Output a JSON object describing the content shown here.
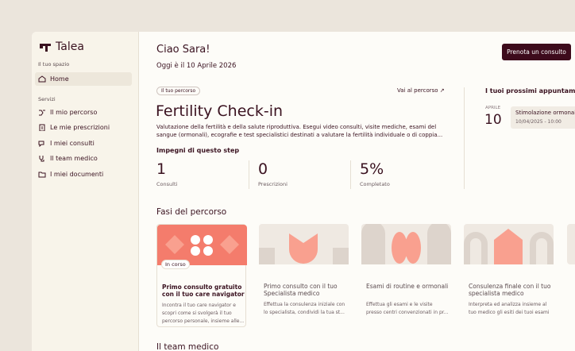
{
  "sidebar": {
    "brand": "Talea",
    "section_space": "Il tuo spazio",
    "home": "Home",
    "section_services": "Servizi",
    "items": [
      "Il mio percorso",
      "Le mie prescrizioni",
      "I miei consulti",
      "Il team medico",
      "I miei documenti"
    ]
  },
  "header": {
    "greeting": "Ciao Sara!",
    "date": "Oggi è il 10 Aprile 2026",
    "button": "Prenota un consulto"
  },
  "journey": {
    "badge": "Il tuo percorso",
    "link": "Vai al percorso",
    "title": "Fertility Check-in",
    "description": "Valutazione della fertilità e della salute riproduttiva. Esegui video consulti, visite mediche, esami del sangue (ormonali), ecografie e test specialistici destinati a valutare la fertilità individuale o di coppia...",
    "commitments_title": "Impegni di questo step",
    "stats": [
      {
        "value": "1",
        "label": "Consulti"
      },
      {
        "value": "0",
        "label": "Prescrizioni"
      },
      {
        "value": "5%",
        "label": "Completato"
      }
    ]
  },
  "appointments": {
    "title": "I tuoi prossimi appuntamenti",
    "items": [
      {
        "month": "APRILE",
        "day": "10",
        "name": "Stimolazione ormonale",
        "datetime": "10/04/2025 - 10:00"
      }
    ]
  },
  "phases": {
    "title": "Fasi del percorso",
    "cards": [
      {
        "status": "In corso",
        "title": "Primo consulto gratuito con il tuo care navigator",
        "description": "Incontra il tuo care navigator e scopri come si svolgerà il tuo percorso personale, insieme alle..."
      },
      {
        "title": "Primo consulto con il tuo Specialista medico",
        "description": "Effettua la consulenza iniziale con lo specialista, condividi la tua st..."
      },
      {
        "title": "Esami di routine e ormonali",
        "description": "Effettua gli esami e le visite presso centri convenzionati in pr..."
      },
      {
        "title": "Consulenza finale con il tuo specialista medico",
        "description": "Interpreta ed analizza insieme al tuo medico gli esiti dei tuoi esami"
      }
    ]
  },
  "team": {
    "title": "Il team medico"
  }
}
